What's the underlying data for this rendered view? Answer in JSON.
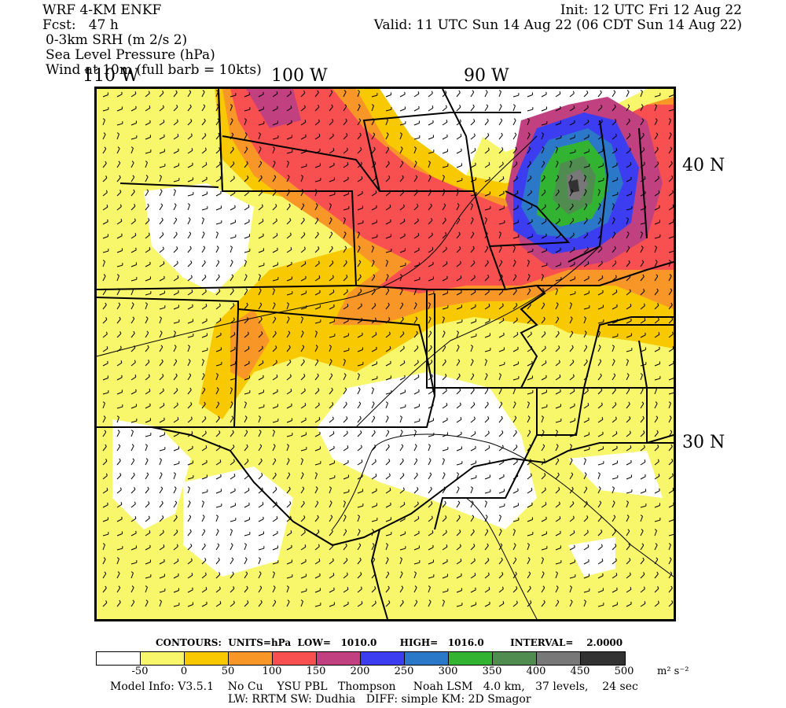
{
  "header": {
    "model": "WRF 4-KM ENKF",
    "fcst": "Fcst:   47 h",
    "field1": "0-3km SRH (m 2/s 2)",
    "field2": "Sea Level Pressure (hPa)",
    "field3": "Wind at 10m (full barb = 10kts)",
    "init": "Init: 12 UTC Fri 12 Aug 22",
    "valid": "Valid: 11 UTC Sun 14 Aug 22 (06 CDT Sun 14 Aug 22)"
  },
  "map": {
    "lon_labels": [
      "110 W",
      "100 W",
      "90 W"
    ],
    "lat_labels": [
      "40 N",
      "30 N"
    ]
  },
  "contours_info": "CONTOURS:  UNITS=hPa  LOW=   1010.0       HIGH=   1016.0        INTERVAL=    2.0000",
  "colorbar": {
    "colors": [
      "#ffffff",
      "#f8f66a",
      "#f8c800",
      "#f89628",
      "#f85050",
      "#c04080",
      "#3c3cf0",
      "#2c78c8",
      "#32b432",
      "#508c50",
      "#787878",
      "#323232"
    ],
    "ticks": [
      "-50",
      "0",
      "50",
      "100",
      "150",
      "200",
      "250",
      "300",
      "350",
      "400",
      "450",
      "500"
    ],
    "units": "m² s⁻²"
  },
  "footer": {
    "line1": "Model Info: V3.5.1    No Cu    YSU PBL   Thompson     Noah LSM   4.0 km,   37 levels,    24 sec",
    "line2": "LW: RRTM SW: Dudhia   DIFF: simple KM: 2D Smagor"
  }
}
